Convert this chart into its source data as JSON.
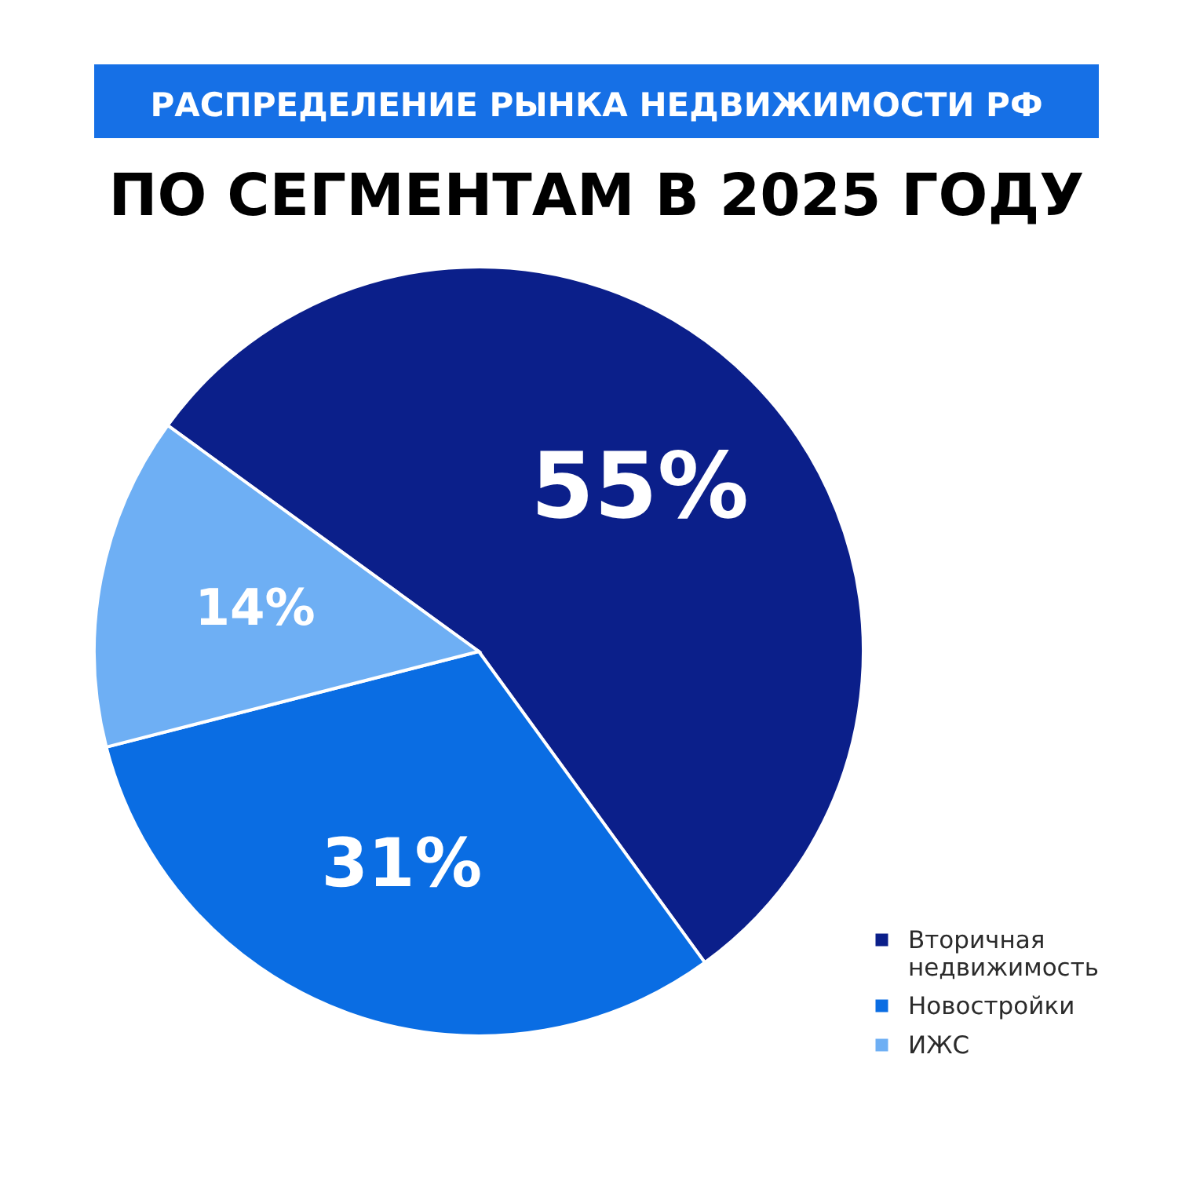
{
  "chart_data": {
    "type": "pie",
    "title": "РАСПРЕДЕЛЕНИЕ РЫНКА НЕДВИЖИМОСТИ РФ",
    "subtitle": "ПО СЕГМЕНТАМ В 2025 ГОДУ",
    "categories": [
      "Вторичная недвижимость",
      "Новостройки",
      "ИЖС"
    ],
    "values": [
      55,
      31,
      14
    ],
    "colors": [
      "#0b1f8a",
      "#0a6de3",
      "#6eaff4"
    ],
    "value_labels": [
      "55%",
      "31%",
      "14%"
    ],
    "legend": "bottom right"
  }
}
